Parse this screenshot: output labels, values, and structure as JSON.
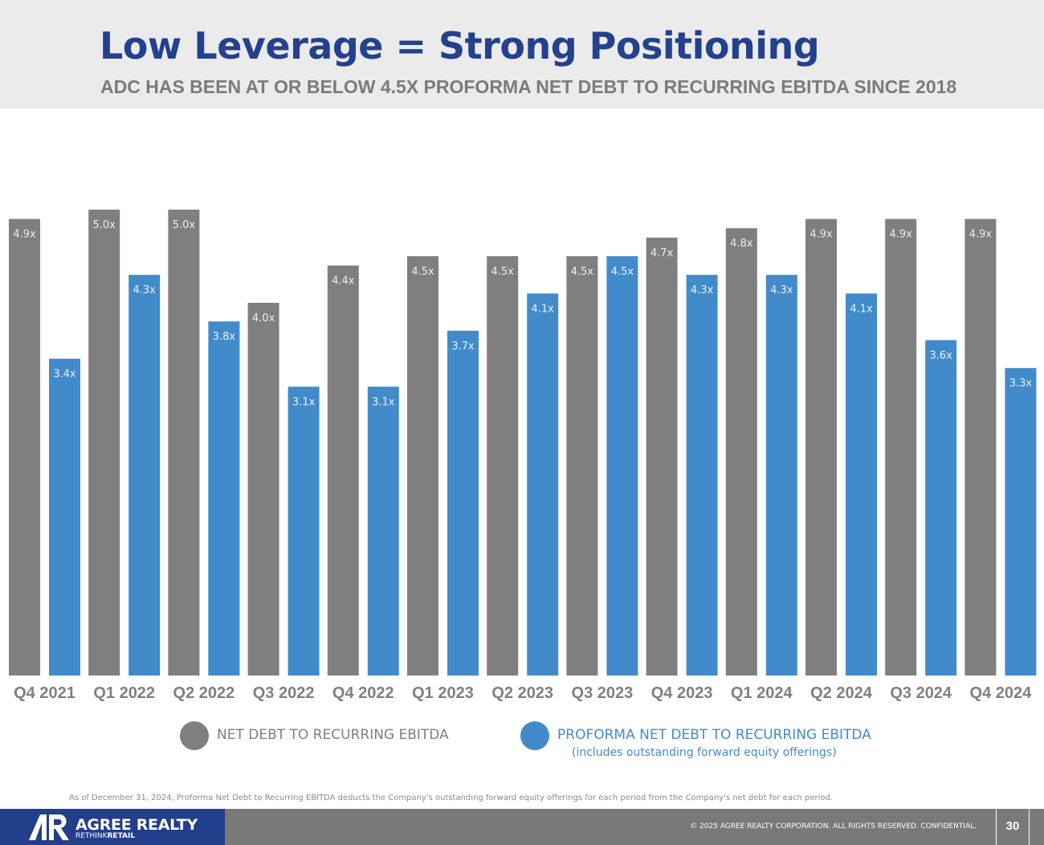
{
  "header": {
    "title": "Low Leverage = Strong Positioning",
    "subtitle": "ADC HAS BEEN AT OR BELOW 4.5X PROFORMA NET DEBT TO RECURRING EBITDA SINCE 2018"
  },
  "chart_data": {
    "type": "bar",
    "title": "",
    "xlabel": "",
    "ylabel": "",
    "ylim": [
      0,
      5.0
    ],
    "grid": false,
    "categories": [
      "Q4 2021",
      "Q1 2022",
      "Q2 2022",
      "Q3 2022",
      "Q4 2022",
      "Q1 2023",
      "Q2 2023",
      "Q3 2023",
      "Q4 2023",
      "Q1 2024",
      "Q2 2024",
      "Q3 2024",
      "Q4 2024"
    ],
    "series": [
      {
        "name": "NET DEBT TO RECURRING EBITDA",
        "color": "#7f7f7f",
        "values": [
          4.9,
          5.0,
          5.0,
          4.0,
          4.4,
          4.5,
          4.5,
          4.5,
          4.7,
          4.8,
          4.9,
          4.9,
          4.9
        ],
        "labels": [
          "4.9x",
          "5.0x",
          "5.0x",
          "4.0x",
          "4.4x",
          "4.5x",
          "4.5x",
          "4.5x",
          "4.7x",
          "4.8x",
          "4.9x",
          "4.9x",
          "4.9x"
        ]
      },
      {
        "name": "PROFORMA NET DEBT TO RECURRING EBITDA",
        "color": "#428bca",
        "values": [
          3.4,
          4.3,
          3.8,
          3.1,
          3.1,
          3.7,
          4.1,
          4.5,
          4.3,
          4.3,
          4.1,
          3.6,
          3.3
        ],
        "labels": [
          "3.4x",
          "4.3x",
          "3.8x",
          "3.1x",
          "3.1x",
          "3.7x",
          "4.1x",
          "4.5x",
          "4.3x",
          "4.3x",
          "4.1x",
          "3.6x",
          "3.3x"
        ]
      }
    ]
  },
  "legend": {
    "series1_label": "NET DEBT TO RECURRING EBITDA",
    "series2_label": "PROFORMA NET DEBT TO RECURRING EBITDA",
    "series2_sub": "(includes outstanding forward equity offerings)",
    "series1_color": "#7f7f7f",
    "series2_color": "#428bca"
  },
  "footnote": "As of December 31, 2024, Proforma Net Debt to Recurring EBITDA deducts the Company's outstanding forward equity offerings for each period from the Company's net debt for each period.",
  "footer": {
    "logo_name": "AGREE REALTY",
    "logo_tag_light": "RETHINK",
    "logo_tag_bold": "RETAIL",
    "copyright": "© 2025 AGREE REALTY CORPORATION. ALL RIGHTS RESERVED. CONFIDENTIAL.",
    "page_number": "30"
  }
}
